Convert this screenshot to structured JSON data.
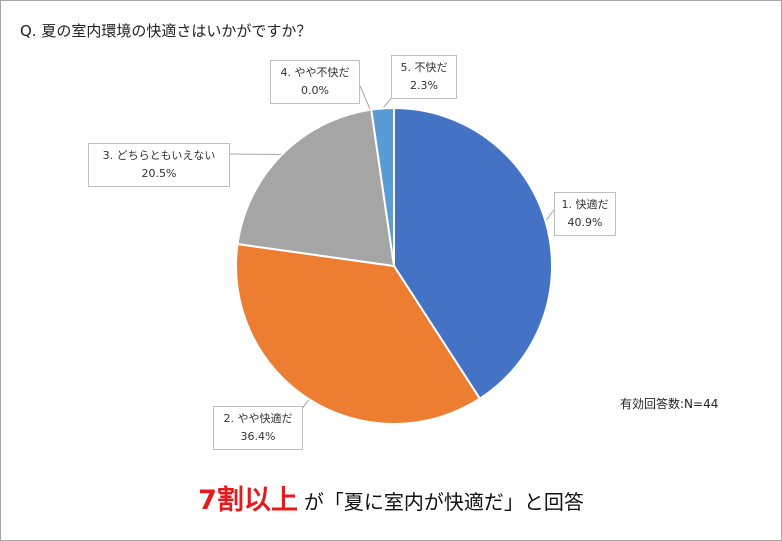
{
  "question": "Q. 夏の室内環境の快適さはいかがですか？",
  "note": "有効回答数:N=44",
  "headline": {
    "highlight": "7割以上",
    "rest": "が「夏に室内が快適だ」と回答"
  },
  "chart_data": {
    "type": "pie",
    "title": "Q. 夏の室内環境の快適さはいかがですか？",
    "slices": [
      {
        "label": "1. 快適だ",
        "value": 40.9,
        "value_label": "40.9%",
        "color": "#4472c4"
      },
      {
        "label": "2. やや快適だ",
        "value": 36.4,
        "value_label": "36.4%",
        "color": "#ed7d31"
      },
      {
        "label": "3. どちらともいえない",
        "value": 20.5,
        "value_label": "20.5%",
        "color": "#a5a5a5"
      },
      {
        "label": "4. やや不快だ",
        "value": 0.0,
        "value_label": "0.0%",
        "color": "#ffc000"
      },
      {
        "label": "5. 不快だ",
        "value": 2.3,
        "value_label": "2.3%",
        "color": "#5b9bd5"
      }
    ],
    "start_angle": "top",
    "direction": "clockwise",
    "legend": "none"
  }
}
